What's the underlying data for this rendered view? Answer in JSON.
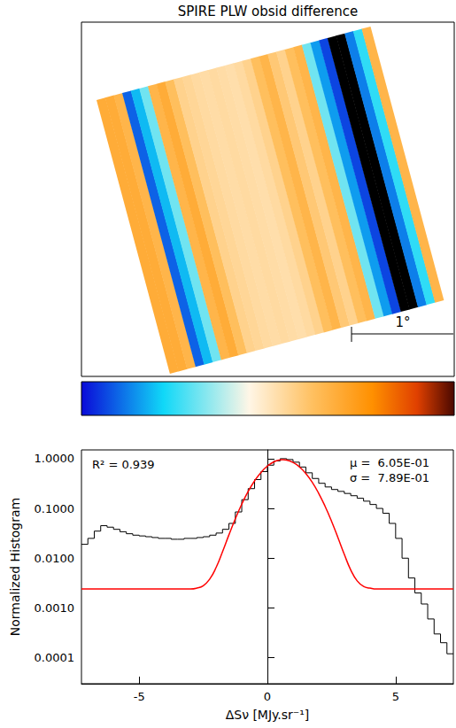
{
  "chart_data": [
    {
      "type": "image_map",
      "title": "SPIRE PLW obsid difference",
      "scale_bar": "1°",
      "stripes": [
        3.0,
        3.0,
        2.5,
        -6.5,
        -5.0,
        -3.0,
        2.5,
        3.0,
        2.0,
        1.0,
        0.8,
        0.6,
        0.5,
        0.6,
        0.5,
        0.4,
        0.6,
        1.0,
        2.0,
        2.5,
        1.5,
        1.0,
        2.0,
        2.5,
        -3.0,
        -5.5,
        -7.0,
        -9.0,
        -9.0,
        -6.0,
        -4.0,
        2.5
      ],
      "colorbar": {
        "range": [
          -8,
          8
        ]
      },
      "tick_labels": false
    },
    {
      "type": "histogram",
      "xlabel": "ΔSν [MJy.sr⁻¹]",
      "ylabel": "Normalized Histogram",
      "color": "#000000",
      "bins": [
        -7.25,
        -7,
        -6.75,
        -6.5,
        -6.25,
        -6,
        -5.75,
        -5.5,
        -5.25,
        -5,
        -4.75,
        -4.5,
        -4.25,
        -4,
        -3.75,
        -3.5,
        -3.25,
        -3,
        -2.75,
        -2.5,
        -2.25,
        -2,
        -1.75,
        -1.5,
        -1.25,
        -1,
        -0.75,
        -0.5,
        -0.25,
        0,
        0.25,
        0.5,
        0.75,
        1,
        1.25,
        1.5,
        1.75,
        2,
        2.25,
        2.5,
        2.75,
        3,
        3.25,
        3.5,
        3.75,
        4,
        4.25,
        4.5,
        4.75,
        5,
        5.25,
        5.5,
        5.75,
        6,
        6.25,
        6.5,
        6.75,
        7,
        7.25
      ],
      "counts": [
        0.019,
        0.025,
        0.035,
        0.045,
        0.042,
        0.038,
        0.034,
        0.031,
        0.029,
        0.028,
        0.027,
        0.026,
        0.025,
        0.025,
        0.024,
        0.024,
        0.025,
        0.025,
        0.026,
        0.027,
        0.029,
        0.032,
        0.038,
        0.05,
        0.085,
        0.15,
        0.25,
        0.38,
        0.55,
        0.74,
        0.9,
        1.0,
        0.96,
        0.85,
        0.68,
        0.52,
        0.4,
        0.32,
        0.27,
        0.24,
        0.22,
        0.2,
        0.18,
        0.16,
        0.14,
        0.12,
        0.1,
        0.08,
        0.05,
        0.025,
        0.01,
        0.004,
        0.002,
        0.0012,
        0.0006,
        0.0003,
        0.0002,
        0.00012
      ],
      "fit": {
        "color": "#ff0000",
        "x": [
          -7.25,
          -3,
          -2.75,
          -2.5,
          -2.25,
          -2,
          -1.75,
          -1.5,
          -1.25,
          -1,
          -0.75,
          -0.5,
          -0.25,
          0,
          0.25,
          0.5,
          0.6,
          0.75,
          1,
          1.25,
          1.5,
          1.75,
          2,
          2.25,
          2.5,
          2.75,
          3,
          3.25,
          3.5,
          3.75,
          4,
          4.25,
          7.25
        ],
        "values": [
          0.0024,
          0.0024,
          0.0025,
          0.0028,
          0.0038,
          0.0065,
          0.0135,
          0.0295,
          0.062,
          0.122,
          0.22,
          0.358,
          0.53,
          0.71,
          0.861,
          0.944,
          0.952,
          0.936,
          0.84,
          0.682,
          0.502,
          0.334,
          0.201,
          0.11,
          0.0555,
          0.026,
          0.0119,
          0.0058,
          0.0035,
          0.0027,
          0.0025,
          0.0024,
          0.0024
        ]
      },
      "annotations": [
        "R² = 0.939",
        "μ =  6.05E-01",
        "σ =  7.89E-01"
      ],
      "log": "y",
      "xlim": [
        -7.25,
        7.25
      ],
      "xticks": [
        -5,
        0,
        5
      ],
      "ylim": [
        3e-05,
        1.5
      ],
      "yticks": [
        0.0001,
        {
          "value": 0.001,
          "label": "0.0010"
        },
        {
          "value": 0.01,
          "label": "0.0100"
        },
        {
          "value": 0.1,
          "label": "0.1000"
        },
        {
          "value": 1,
          "label": "1.0000"
        }
      ],
      "grid": false
    }
  ]
}
